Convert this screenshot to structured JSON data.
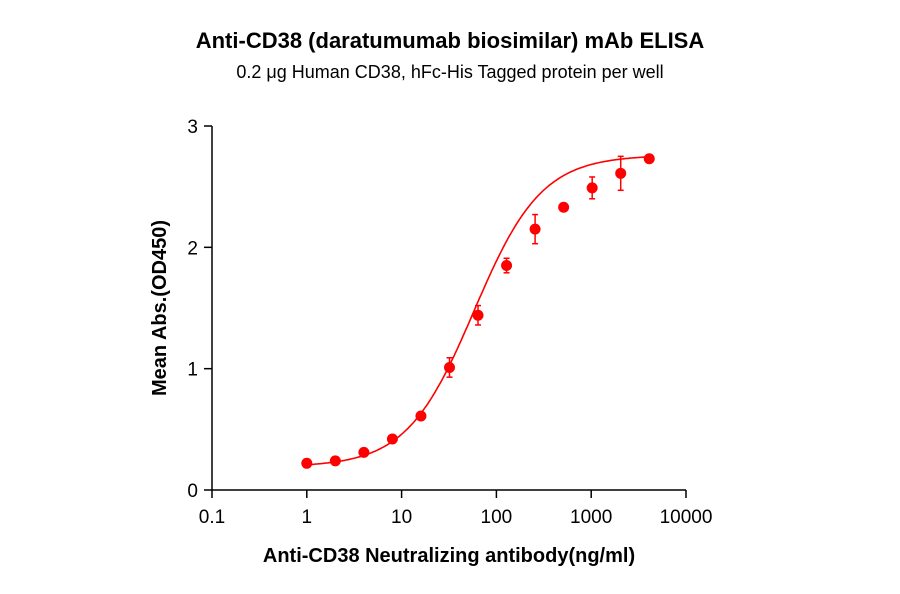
{
  "chart_data": {
    "type": "scatter",
    "title": "Anti-CD38 (daratumumab biosimilar) mAb ELISA",
    "subtitle": "0.2 μg Human CD38, hFc-His Tagged protein per well",
    "xlabel": "Anti-CD38 Neutralizing antibody(ng/ml)",
    "ylabel": "Mean Abs.(OD450)",
    "xscale": "log",
    "xlim": [
      0.1,
      10000
    ],
    "ylim": [
      0,
      3
    ],
    "xticks": [
      "0.1",
      "1",
      "10",
      "100",
      "1000",
      "10000"
    ],
    "yticks": [
      "0",
      "1",
      "2",
      "3"
    ],
    "grid": false,
    "color": "#ff0000",
    "fit": "four-parameter logistic curve",
    "x": [
      1,
      2,
      4,
      8,
      16,
      32,
      64,
      128,
      256,
      512,
      1024,
      2048,
      4096
    ],
    "y": [
      0.22,
      0.24,
      0.31,
      0.42,
      0.61,
      1.01,
      1.44,
      1.85,
      2.15,
      2.33,
      2.49,
      2.61,
      2.73
    ],
    "error": [
      0.01,
      0.01,
      0.01,
      0.01,
      0.01,
      0.08,
      0.08,
      0.06,
      0.12,
      0.01,
      0.09,
      0.14,
      0.01
    ]
  }
}
